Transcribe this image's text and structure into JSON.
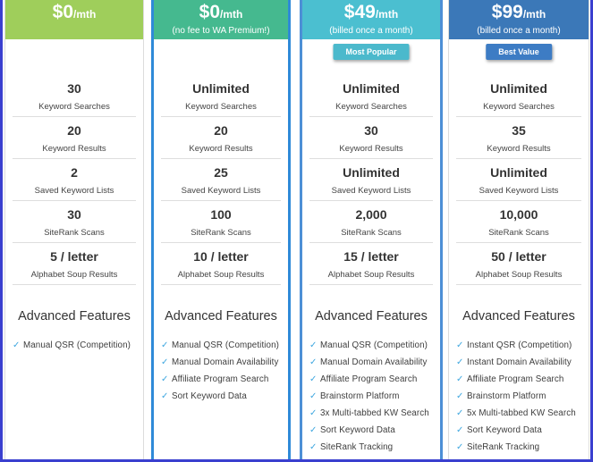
{
  "colors": {
    "free": "#9fce5b",
    "wa_premium": "#45b98f",
    "tier49": "#4bbfd0",
    "tier99": "#3b78b8",
    "badge_popular": "#4bb9cc",
    "badge_value": "#3d7cc4",
    "check": "#3fa7e0"
  },
  "plans": [
    {
      "price": "$0",
      "per": "/mth",
      "billing": "",
      "badge": "",
      "stats": [
        {
          "value": "30",
          "label": "Keyword Searches"
        },
        {
          "value": "20",
          "label": "Keyword Results"
        },
        {
          "value": "2",
          "label": "Saved Keyword Lists"
        },
        {
          "value": "30",
          "label": "SiteRank Scans"
        },
        {
          "value": "5 / letter",
          "label": "Alphabet Soup Results"
        }
      ],
      "advanced_title": "Advanced Features",
      "features": [
        "Manual QSR (Competition)"
      ]
    },
    {
      "price": "$0",
      "per": "/mth",
      "billing": "(no fee to WA Premium!)",
      "badge": "",
      "stats": [
        {
          "value": "Unlimited",
          "label": "Keyword Searches"
        },
        {
          "value": "20",
          "label": "Keyword Results"
        },
        {
          "value": "25",
          "label": "Saved Keyword Lists"
        },
        {
          "value": "100",
          "label": "SiteRank Scans"
        },
        {
          "value": "10 / letter",
          "label": "Alphabet Soup Results"
        }
      ],
      "advanced_title": "Advanced Features",
      "features": [
        "Manual QSR (Competition)",
        "Manual Domain Availability",
        "Affiliate Program Search",
        "Sort Keyword Data"
      ]
    },
    {
      "price": "$49",
      "per": "/mth",
      "billing": "(billed once a month)",
      "badge": "Most Popular",
      "stats": [
        {
          "value": "Unlimited",
          "label": "Keyword Searches"
        },
        {
          "value": "30",
          "label": "Keyword Results"
        },
        {
          "value": "Unlimited",
          "label": "Saved Keyword Lists"
        },
        {
          "value": "2,000",
          "label": "SiteRank Scans"
        },
        {
          "value": "15 / letter",
          "label": "Alphabet Soup Results"
        }
      ],
      "advanced_title": "Advanced Features",
      "features": [
        "Manual QSR (Competition)",
        "Manual Domain Availability",
        "Affiliate Program Search",
        "Brainstorm Platform",
        "3x Multi-tabbed KW Search",
        "Sort Keyword Data",
        "SiteRank Tracking"
      ]
    },
    {
      "price": "$99",
      "per": "/mth",
      "billing": "(billed once a month)",
      "badge": "Best Value",
      "stats": [
        {
          "value": "Unlimited",
          "label": "Keyword Searches"
        },
        {
          "value": "35",
          "label": "Keyword Results"
        },
        {
          "value": "Unlimited",
          "label": "Saved Keyword Lists"
        },
        {
          "value": "10,000",
          "label": "SiteRank Scans"
        },
        {
          "value": "50 / letter",
          "label": "Alphabet Soup Results"
        }
      ],
      "advanced_title": "Advanced Features",
      "features": [
        "Instant QSR (Competition)",
        "Instant Domain Availability",
        "Affiliate Program Search",
        "Brainstorm Platform",
        "5x Multi-tabbed KW Search",
        "Sort Keyword Data",
        "SiteRank Tracking"
      ]
    }
  ]
}
